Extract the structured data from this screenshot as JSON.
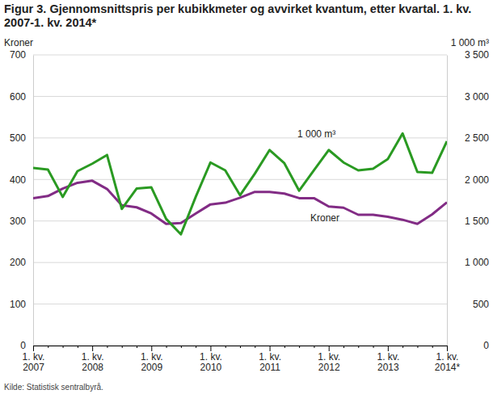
{
  "chart_data": {
    "type": "line",
    "title": "Figur 3. Gjennomsnittspris per kubikkmeter og avvirket kvantum, etter kvartal. 1. kv. 2007-1. kv. 2014*",
    "source": "Kilde: Statistisk sentralbyrå.",
    "ylabel": "Kroner",
    "y2label": "1 000 m³",
    "categories": [
      "1. kv. 2007",
      null,
      null,
      null,
      "1. kv. 2008",
      null,
      null,
      null,
      "1. kv. 2009",
      null,
      null,
      null,
      "1. kv. 2010",
      null,
      null,
      null,
      "1. kv. 2011",
      null,
      null,
      null,
      "1. kv. 2012",
      null,
      null,
      null,
      "1. kv. 2013",
      null,
      null,
      null,
      "1. kv. 2014*"
    ],
    "series": [
      {
        "name": "Kroner",
        "color": "#822c85",
        "axis": "y",
        "values": [
          355,
          360,
          378,
          392,
          397,
          377,
          338,
          333,
          318,
          293,
          295,
          318,
          340,
          344,
          356,
          370,
          370,
          366,
          355,
          355,
          335,
          332,
          315,
          315,
          310,
          303,
          293,
          316,
          345
        ]
      },
      {
        "name": "1 000 m³",
        "color": "#2a9a22",
        "axis": "y2",
        "values": [
          2140,
          2120,
          1790,
          2100,
          2190,
          2295,
          1645,
          1890,
          1905,
          1525,
          1340,
          1790,
          2205,
          2110,
          1810,
          2070,
          2355,
          2195,
          1865,
          2110,
          2355,
          2205,
          2110,
          2130,
          2245,
          2555,
          2090,
          2080,
          2460
        ]
      }
    ],
    "ylim": [
      0,
      700
    ],
    "yticks": [
      0,
      100,
      200,
      300,
      400,
      500,
      600,
      700
    ],
    "y2lim": [
      0,
      3500
    ],
    "y2ticks": [
      0,
      500,
      {
        "value": 1000,
        "label": "1 000"
      },
      {
        "value": 1500,
        "label": "1 500"
      },
      {
        "value": 2000,
        "label": "2 000"
      },
      {
        "value": 2500,
        "label": "2 500"
      },
      {
        "value": 3000,
        "label": "3 000"
      },
      {
        "value": 3500,
        "label": "3 500"
      }
    ],
    "grid": true
  }
}
